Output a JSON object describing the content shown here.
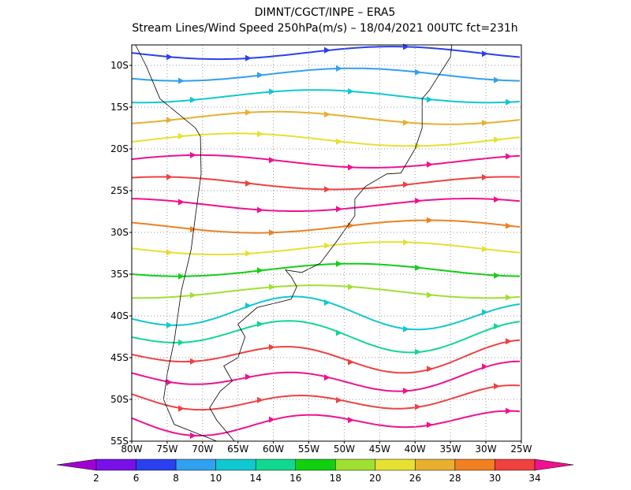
{
  "header": {
    "title": "DIMNT/CGCT/INPE –  ERA5",
    "subtitle": "Stream Lines/Wind Speed 250hPa(m/s) –  18/04/2021 00UTC fct=231h"
  },
  "map": {
    "lat_labels": [
      "10S",
      "15S",
      "20S",
      "25S",
      "30S",
      "35S",
      "40S",
      "45S",
      "50S",
      "55S"
    ],
    "lon_labels": [
      "80W",
      "75W",
      "70W",
      "65W",
      "60W",
      "55W",
      "50W",
      "45W",
      "40W",
      "35W",
      "30W",
      "25W"
    ]
  },
  "colorbar": {
    "labels": [
      "2",
      "6",
      "8",
      "10",
      "14",
      "16",
      "18",
      "20",
      "26",
      "28",
      "30",
      "34"
    ],
    "colors": [
      "#a000d0",
      "#7a10e8",
      "#2a40f0",
      "#30a0f0",
      "#10c8d0",
      "#10d890",
      "#10d010",
      "#a0e030",
      "#e6e030",
      "#e8b030",
      "#f08020",
      "#f04040",
      "#f01090"
    ]
  }
}
